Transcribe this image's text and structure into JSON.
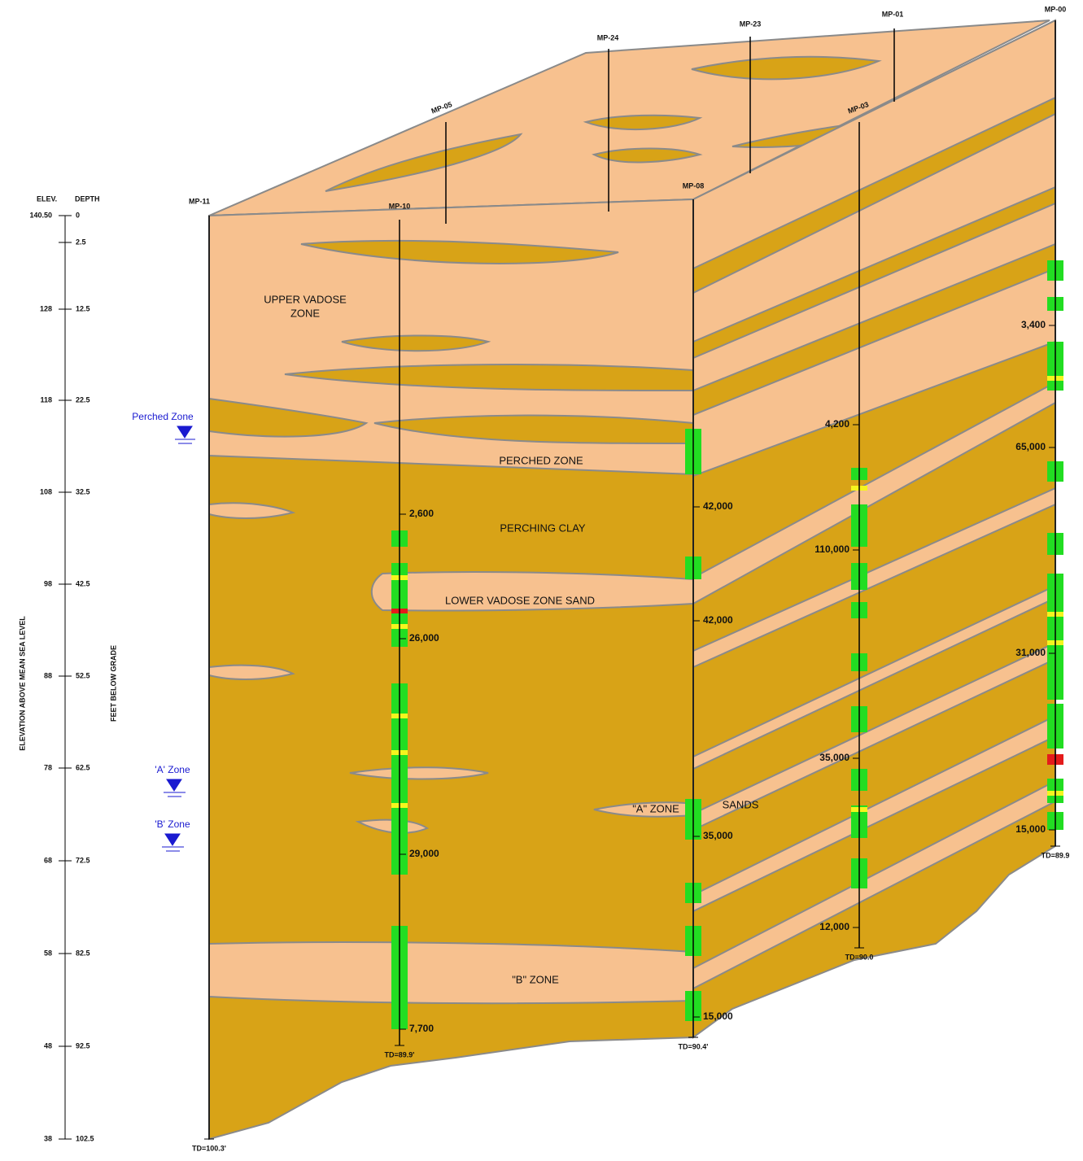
{
  "scale": {
    "headers": [
      "ELEV.",
      "DEPTH"
    ],
    "rows": [
      {
        "elevation": "140.50",
        "depth": "0"
      },
      {
        "elevation": null,
        "depth": "2.5"
      },
      {
        "elevation": "128",
        "depth": "12.5"
      },
      {
        "elevation": "118",
        "depth": "22.5"
      },
      {
        "elevation": "108",
        "depth": "32.5"
      },
      {
        "elevation": "98",
        "depth": "42.5"
      },
      {
        "elevation": "88",
        "depth": "52.5"
      },
      {
        "elevation": "78",
        "depth": "62.5"
      },
      {
        "elevation": "68",
        "depth": "72.5"
      },
      {
        "elevation": "58",
        "depth": "82.5"
      },
      {
        "elevation": "48",
        "depth": "92.5"
      },
      {
        "elevation": "38",
        "depth": "102.5"
      }
    ],
    "elevation_title": "ELEVATION ABOVE MEAN SEA LEVEL",
    "depth_title": "FEET BELOW GRADE"
  },
  "wells": [
    {
      "name": "MP-11",
      "td": "TD=100.3'"
    },
    {
      "name": "MP-10",
      "td": "TD=89.9'",
      "readings": [
        "2,600",
        "26,000",
        "29,000",
        "7,700"
      ]
    },
    {
      "name": "MP-08",
      "td": "TD=90.4'",
      "readings": [
        "42,000",
        "42,000",
        "35,000",
        "15,000"
      ]
    },
    {
      "name": "MP-03",
      "td": "TD=90.0",
      "readings": [
        "4,200",
        "110,000",
        "35,000",
        "12,000"
      ]
    },
    {
      "name": "MP-00",
      "td": "TD=89.9",
      "readings": [
        "3,400",
        "65,000",
        "31,000",
        "15,000"
      ]
    },
    {
      "name": "MP-05"
    },
    {
      "name": "MP-24"
    },
    {
      "name": "MP-23"
    },
    {
      "name": "MP-01"
    }
  ],
  "zones": [
    "UPPER VADOSE",
    "ZONE",
    "PERCHED ZONE",
    "PERCHING CLAY",
    "LOWER VADOSE ZONE SAND",
    "\"A\" ZONE",
    "SANDS",
    "\"B\" ZONE"
  ],
  "water_levels": [
    "Perched Zone",
    "'A' Zone",
    "'B' Zone"
  ]
}
